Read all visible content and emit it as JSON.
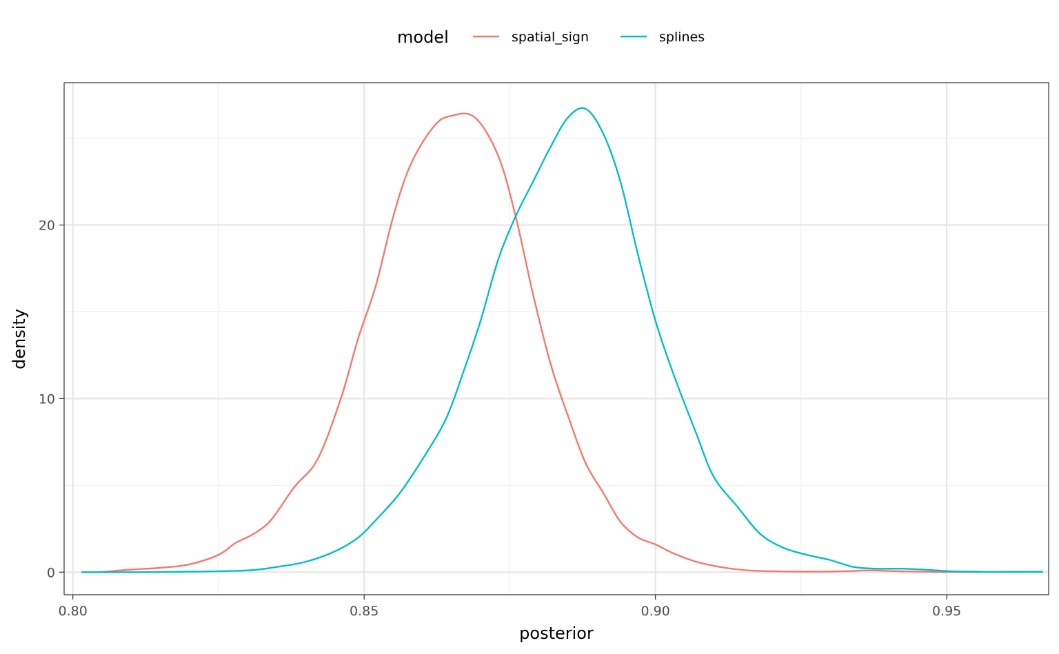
{
  "chart_data": {
    "type": "line",
    "xlabel": "posterior",
    "ylabel": "density",
    "xlim": [
      0.7985,
      0.9675
    ],
    "ylim": [
      -1.3,
      28.2
    ],
    "grid": true,
    "legend": {
      "title": "model",
      "position": "top"
    },
    "x_ticks": [
      {
        "value": 0.8,
        "label": "0.80"
      },
      {
        "value": 0.85,
        "label": "0.85"
      },
      {
        "value": 0.9,
        "label": "0.90"
      },
      {
        "value": 0.95,
        "label": "0.95"
      }
    ],
    "x_minor": [
      0.825,
      0.875,
      0.925
    ],
    "y_ticks": [
      {
        "value": 0,
        "label": "0"
      },
      {
        "value": 10,
        "label": "10"
      },
      {
        "value": 20,
        "label": "20"
      }
    ],
    "y_minor": [
      5,
      15,
      25
    ],
    "series": [
      {
        "name": "spatial_sign",
        "color": "#F8766D",
        "x": [
          0.8015,
          0.805,
          0.81,
          0.815,
          0.82,
          0.825,
          0.828,
          0.831,
          0.834,
          0.838,
          0.842,
          0.846,
          0.849,
          0.852,
          0.855,
          0.858,
          0.862,
          0.865,
          0.869,
          0.873,
          0.876,
          0.879,
          0.882,
          0.885,
          0.888,
          0.891,
          0.894,
          0.897,
          0.9,
          0.903,
          0.907,
          0.912,
          0.917,
          0.922,
          0.927,
          0.932,
          0.937,
          0.942,
          0.947,
          0.952,
          0.957,
          0.962,
          0.9665
        ],
        "y": [
          0.0,
          0.02,
          0.15,
          0.25,
          0.45,
          1.0,
          1.7,
          2.2,
          3.0,
          4.9,
          6.5,
          10.0,
          13.5,
          16.5,
          20.5,
          23.5,
          25.7,
          26.3,
          26.2,
          24.0,
          20.5,
          16.0,
          12.0,
          9.0,
          6.3,
          4.6,
          2.9,
          2.0,
          1.6,
          1.1,
          0.6,
          0.25,
          0.08,
          0.04,
          0.03,
          0.05,
          0.1,
          0.05,
          0.02,
          0.01,
          0.02,
          0.03,
          0.02
        ]
      },
      {
        "name": "splines",
        "color": "#00BFC4",
        "x": [
          0.8015,
          0.81,
          0.82,
          0.83,
          0.835,
          0.84,
          0.845,
          0.849,
          0.852,
          0.856,
          0.86,
          0.864,
          0.867,
          0.87,
          0.873,
          0.876,
          0.879,
          0.882,
          0.885,
          0.888,
          0.891,
          0.894,
          0.897,
          0.9,
          0.903,
          0.907,
          0.91,
          0.914,
          0.918,
          0.922,
          0.926,
          0.93,
          0.934,
          0.938,
          0.942,
          0.946,
          0.95,
          0.955,
          0.96,
          0.9665
        ],
        "y": [
          0.0,
          0.0,
          0.03,
          0.1,
          0.3,
          0.6,
          1.2,
          2.0,
          3.0,
          4.5,
          6.5,
          8.8,
          11.5,
          14.5,
          18.0,
          20.5,
          22.5,
          24.5,
          26.2,
          26.7,
          25.3,
          22.5,
          18.3,
          14.5,
          11.5,
          8.0,
          5.5,
          3.8,
          2.2,
          1.4,
          1.0,
          0.7,
          0.3,
          0.2,
          0.2,
          0.15,
          0.06,
          0.03,
          0.02,
          0.03
        ]
      }
    ]
  }
}
